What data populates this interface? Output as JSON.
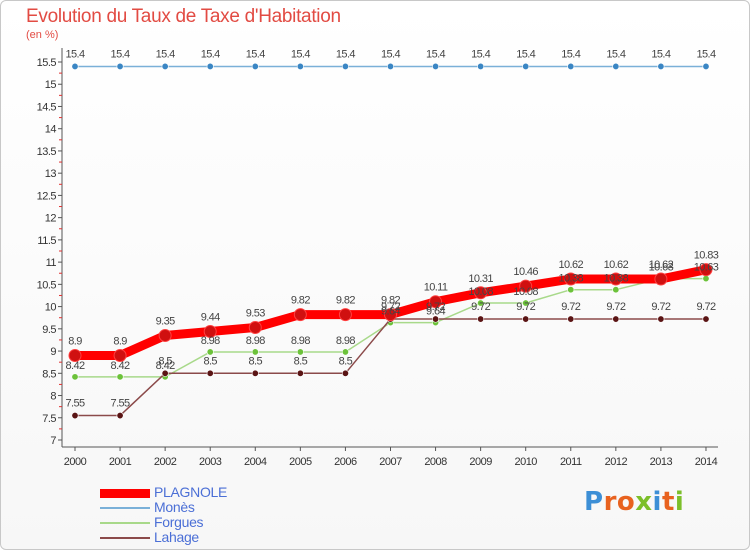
{
  "header": {
    "title": "Evolution du Taux de Taxe d'Habitation",
    "unit": "(en %)"
  },
  "logo": {
    "text": "Proxiti",
    "letter_colors": [
      "#3d8fd6",
      "#e8621f",
      "#e8621f",
      "#7cbf2a",
      "#3d8fd6",
      "#e8621f",
      "#7cbf2a"
    ]
  },
  "chart_data": {
    "type": "line",
    "title": "Evolution du Taux de Taxe d'Habitation",
    "ylabel": "(en %)",
    "xlabel": "",
    "categories": [
      "2000",
      "2001",
      "2002",
      "2003",
      "2004",
      "2005",
      "2006",
      "2007",
      "2008",
      "2009",
      "2010",
      "2011",
      "2012",
      "2013",
      "2014"
    ],
    "ylim": [
      7,
      15.5
    ],
    "yticks": [
      "7",
      "7.5",
      "8",
      "8.5",
      "9",
      "9.5",
      "10",
      "10.5",
      "11",
      "11.5",
      "12",
      "12.5",
      "13",
      "13.5",
      "14",
      "14.5",
      "15",
      "15.5"
    ],
    "grid": false,
    "legend_position": "bottom-left",
    "series": [
      {
        "name": "Monès",
        "color": "#7ab0d8",
        "marker": "#3a86c4",
        "values": [
          15.4,
          15.4,
          15.4,
          15.4,
          15.4,
          15.4,
          15.4,
          15.4,
          15.4,
          15.4,
          15.4,
          15.4,
          15.4,
          15.4,
          15.4
        ],
        "labels": [
          "15.4",
          "15.4",
          "15.4",
          "15.4",
          "15.4",
          "15.4",
          "15.4",
          "15.4",
          "15.4",
          "15.4",
          "15.4",
          "15.4",
          "15.4",
          "15.4",
          "15.4"
        ]
      },
      {
        "name": "Forgues",
        "color": "#a8d98a",
        "marker": "#6cc23a",
        "values": [
          8.42,
          8.42,
          8.42,
          8.98,
          8.98,
          8.98,
          8.98,
          9.64,
          9.64,
          10.08,
          10.08,
          10.38,
          10.38,
          10.63,
          10.63
        ],
        "labels": [
          "8.42",
          "8.42",
          "8.42",
          "8.98",
          "8.98",
          "8.98",
          "8.98",
          "9.64",
          "9.64",
          "10.08",
          "10.08",
          "10.38",
          "10.38",
          "10.63",
          "10.63"
        ]
      },
      {
        "name": "Lahage",
        "color": "#8b4a4a",
        "marker": "#5a1414",
        "values": [
          7.55,
          7.55,
          8.5,
          8.5,
          8.5,
          8.5,
          8.5,
          9.72,
          9.72,
          9.72,
          9.72,
          9.72,
          9.72,
          9.72,
          9.72
        ],
        "labels": [
          "7.55",
          "7.55",
          "8.5",
          "8.5",
          "8.5",
          "8.5",
          "8.5",
          "9.72",
          "9.72",
          "9.72",
          "9.72",
          "9.72",
          "9.72",
          "9.72",
          "9.72"
        ]
      },
      {
        "name": "PLAGNOLE",
        "color": "#ff0000",
        "marker": "#d01010",
        "values": [
          8.9,
          8.9,
          9.35,
          9.44,
          9.53,
          9.82,
          9.82,
          9.82,
          10.11,
          10.31,
          10.46,
          10.62,
          10.62,
          10.62,
          10.83
        ],
        "labels": [
          "8.9",
          "8.9",
          "9.35",
          "9.44",
          "9.53",
          "9.82",
          "9.82",
          "9.82",
          "10.11",
          "10.31",
          "10.46",
          "10.62",
          "10.62",
          "10.62",
          "10.83"
        ]
      }
    ],
    "legend": [
      "PLAGNOLE",
      "Monès",
      "Forgues",
      "Lahage"
    ]
  }
}
